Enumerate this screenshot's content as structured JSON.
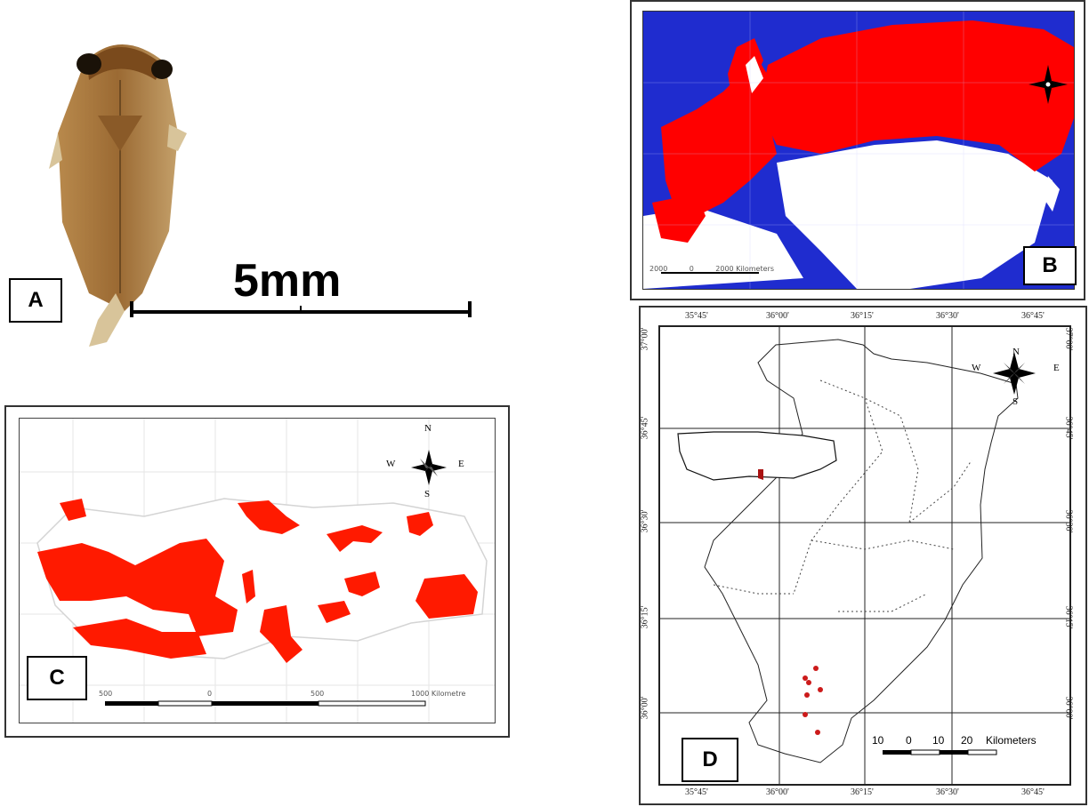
{
  "panels": {
    "A": {
      "label": "A",
      "scale_text": "5mm"
    },
    "B": {
      "label": "B",
      "scalebar": [
        "2000",
        "0",
        "2000 Kilometers"
      ],
      "colors": {
        "ocean": "#1f2ccf",
        "range": "#ff0000",
        "land": "#ffffff"
      }
    },
    "C": {
      "label": "C",
      "scalebar": [
        "500",
        "0",
        "500",
        "1000 Kilometre"
      ],
      "compass": [
        "N",
        "S",
        "W",
        "E"
      ],
      "range_color": "#ff1a00"
    },
    "D": {
      "label": "D",
      "top_ticks": [
        "35°45'",
        "36°00'",
        "36°15'",
        "36°30'",
        "36°45'"
      ],
      "bottom_ticks": [
        "35°45'",
        "36°00'",
        "36°15'",
        "36°30'",
        "36°45'"
      ],
      "left_ticks": [
        "37°00'",
        "36°45'",
        "36°30'",
        "36°15'",
        "36°00'"
      ],
      "right_ticks": [
        "37°00'",
        "36°45'",
        "36°30'",
        "36°15'",
        "36°00'"
      ],
      "compass": [
        "N",
        "S",
        "W",
        "E"
      ],
      "scalebar": [
        "10",
        "0",
        "10",
        "20",
        "Kilometers"
      ],
      "point_color": "#cc1a1a"
    }
  }
}
